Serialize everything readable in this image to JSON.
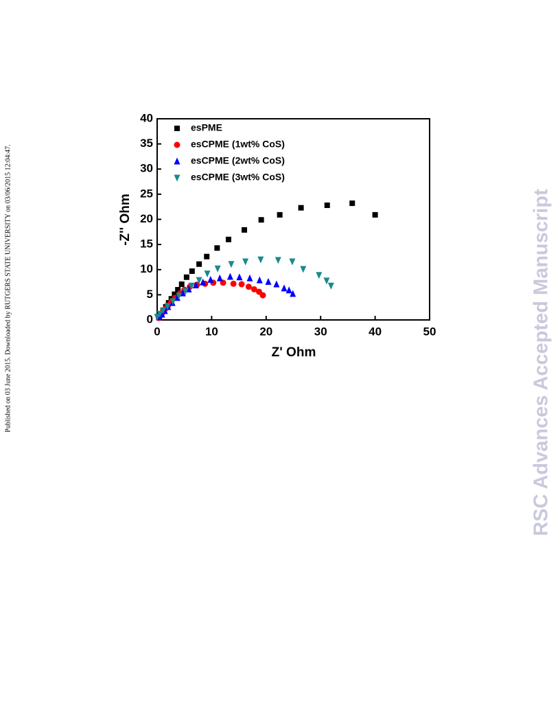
{
  "side_note": "Published on 03 June 2015. Downloaded by RUTGERS STATE UNIVERSITY on 03/06/2015 12:04:47.",
  "watermark": "RSC Advances Accepted Manuscript",
  "chart_data": {
    "type": "scatter",
    "x_label": "Z' Ohm",
    "y_label": "-Z'' Ohm",
    "xlim": [
      0,
      50
    ],
    "xticks": [
      0,
      10,
      20,
      30,
      40,
      50
    ],
    "ylim": [
      0,
      40
    ],
    "yticks": [
      0,
      5,
      10,
      15,
      20,
      25,
      30,
      35,
      40
    ],
    "legend": "upper left",
    "series": [
      {
        "name": "esPME",
        "color": "#000000",
        "marker": "square",
        "x": [
          0.4,
          0.8,
          1.1,
          1.6,
          2.1,
          2.6,
          3.2,
          3.8,
          4.5,
          5.4,
          6.4,
          7.7,
          9.1,
          11.0,
          13.1,
          16.0,
          19.1,
          22.5,
          26.4,
          31.2,
          35.8,
          40.0
        ],
        "values": [
          0.5,
          1.1,
          1.8,
          2.6,
          3.4,
          4.2,
          5.1,
          6.0,
          7.1,
          8.5,
          9.7,
          11.1,
          12.6,
          14.3,
          16.0,
          17.9,
          19.9,
          20.9,
          22.3,
          22.8,
          23.2,
          20.9
        ]
      },
      {
        "name": "esCPME (1wt% CoS)",
        "color": "#ff0000",
        "marker": "circle",
        "x": [
          0.3,
          0.6,
          1.0,
          1.5,
          2.0,
          2.6,
          3.3,
          4.2,
          5.0,
          6.0,
          7.3,
          8.8,
          10.3,
          12.1,
          14.0,
          15.5,
          16.8,
          17.8,
          18.7,
          19.4
        ],
        "values": [
          0.4,
          1.0,
          1.5,
          2.2,
          2.9,
          3.6,
          4.4,
          5.3,
          6.0,
          6.6,
          7.0,
          7.2,
          7.4,
          7.4,
          7.2,
          7.1,
          6.6,
          6.1,
          5.6,
          4.9
        ]
      },
      {
        "name": "esCPME (2wt% CoS)",
        "color": "#0000ff",
        "marker": "triangle-up",
        "x": [
          0.4,
          0.9,
          1.4,
          2.0,
          2.8,
          3.7,
          4.7,
          5.8,
          7.1,
          8.4,
          9.8,
          11.5,
          13.4,
          15.1,
          17.0,
          18.8,
          20.4,
          21.9,
          23.3,
          24.2,
          24.9
        ],
        "values": [
          0.6,
          1.1,
          1.8,
          2.6,
          3.4,
          4.4,
          5.3,
          6.1,
          6.9,
          7.5,
          8.0,
          8.3,
          8.6,
          8.5,
          8.3,
          7.9,
          7.6,
          7.1,
          6.3,
          5.9,
          5.2
        ]
      },
      {
        "name": "esCPME (3wt% CoS)",
        "color": "#1a8a8a",
        "marker": "triangle-down",
        "x": [
          0.0,
          0.5,
          1.1,
          1.9,
          2.9,
          4.0,
          5.2,
          6.3,
          7.7,
          9.2,
          11.1,
          13.6,
          16.2,
          19.0,
          22.2,
          24.8,
          26.8,
          29.7,
          31.1,
          31.9
        ],
        "values": [
          0.6,
          1.2,
          1.9,
          2.7,
          3.7,
          4.8,
          5.7,
          6.8,
          7.9,
          9.2,
          10.2,
          11.1,
          11.6,
          12.0,
          11.9,
          11.6,
          10.1,
          8.9,
          7.8,
          6.8
        ]
      }
    ]
  }
}
